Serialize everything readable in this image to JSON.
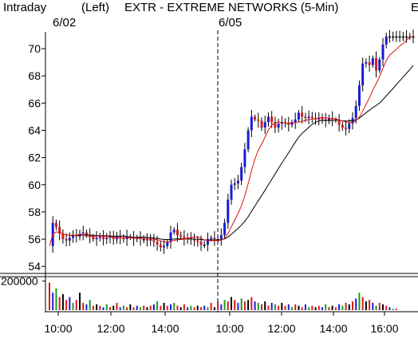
{
  "header": {
    "mode": "Intraday",
    "axis_side": "(Left)",
    "title": "EXTR - EXTREME NETWORKS (5-Min)",
    "day1_label": "6/02",
    "day2_label": "6/05",
    "edge_mark": "E"
  },
  "chart_data": {
    "type": "candlestick",
    "title": "EXTR - EXTREME NETWORKS (5-Min)",
    "price_axis": {
      "ticks": [
        54,
        56,
        58,
        60,
        62,
        64,
        66,
        68,
        70
      ],
      "ylim": [
        53.6,
        71.0
      ]
    },
    "volume_axis": {
      "ticks": [
        "200000"
      ],
      "ylim": [
        0,
        220000
      ]
    },
    "time_axis": {
      "ticks": [
        "10:00",
        "12:00",
        "14:00",
        "10:00",
        "12:00",
        "14:00",
        "16:00"
      ]
    },
    "sessions": [
      "6/02",
      "6/05"
    ],
    "colors": {
      "up": "#1a1ad8",
      "down": "#d81a1a",
      "neutral": "#000000",
      "ma_fast": "#e01010",
      "ma_slow": "#000000"
    },
    "price_path": [
      [
        0,
        55.5
      ],
      [
        1,
        57.2
      ],
      [
        2,
        56.9
      ],
      [
        3,
        56.4
      ],
      [
        4,
        56.0
      ],
      [
        5,
        55.9
      ],
      [
        6,
        56.1
      ],
      [
        7,
        56.3
      ],
      [
        8,
        56.2
      ],
      [
        9,
        56.4
      ],
      [
        10,
        56.5
      ],
      [
        11,
        56.3
      ],
      [
        12,
        56.2
      ],
      [
        13,
        56.0
      ],
      [
        14,
        56.1
      ],
      [
        15,
        56.2
      ],
      [
        16,
        56.0
      ],
      [
        17,
        56.1
      ],
      [
        18,
        56.2
      ],
      [
        19,
        56.0
      ],
      [
        20,
        56.2
      ],
      [
        21,
        56.1
      ],
      [
        22,
        56.0
      ],
      [
        23,
        56.2
      ],
      [
        24,
        56.1
      ],
      [
        25,
        56.0
      ],
      [
        26,
        56.1
      ],
      [
        27,
        56.0
      ],
      [
        28,
        56.0
      ],
      [
        29,
        55.9
      ],
      [
        30,
        56.0
      ],
      [
        31,
        55.8
      ],
      [
        32,
        55.6
      ],
      [
        33,
        55.4
      ],
      [
        34,
        55.5
      ],
      [
        35,
        55.8
      ],
      [
        36,
        56.5
      ],
      [
        37,
        56.7
      ],
      [
        38,
        56.3
      ],
      [
        39,
        56.2
      ],
      [
        40,
        56.0
      ],
      [
        41,
        56.1
      ],
      [
        42,
        56.0
      ],
      [
        43,
        55.9
      ],
      [
        44,
        55.8
      ],
      [
        45,
        55.6
      ],
      [
        46,
        55.6
      ],
      [
        47,
        56.0
      ],
      [
        48,
        56.1
      ],
      [
        49,
        56.0
      ],
      [
        50,
        56.0
      ],
      [
        51,
        56.3
      ],
      [
        52,
        57.2
      ],
      [
        53,
        58.9
      ],
      [
        54,
        60.0
      ],
      [
        55,
        60.1
      ],
      [
        56,
        60.3
      ],
      [
        57,
        61.3
      ],
      [
        58,
        62.6
      ],
      [
        59,
        64.0
      ],
      [
        60,
        65.0
      ],
      [
        61,
        64.8
      ],
      [
        62,
        64.7
      ],
      [
        63,
        64.2
      ],
      [
        64,
        64.6
      ],
      [
        65,
        65.0
      ],
      [
        66,
        64.6
      ],
      [
        67,
        64.2
      ],
      [
        68,
        64.5
      ],
      [
        69,
        64.6
      ],
      [
        70,
        64.5
      ],
      [
        71,
        64.4
      ],
      [
        72,
        64.6
      ],
      [
        73,
        64.8
      ],
      [
        74,
        65.3
      ],
      [
        75,
        65.0
      ],
      [
        76,
        64.9
      ],
      [
        77,
        65.0
      ],
      [
        78,
        64.9
      ],
      [
        79,
        64.8
      ],
      [
        80,
        64.9
      ],
      [
        81,
        64.8
      ],
      [
        82,
        64.7
      ],
      [
        83,
        64.9
      ],
      [
        84,
        64.8
      ],
      [
        85,
        64.7
      ],
      [
        86,
        64.4
      ],
      [
        87,
        64.2
      ],
      [
        88,
        64.1
      ],
      [
        89,
        64.5
      ],
      [
        90,
        64.9
      ],
      [
        91,
        65.8
      ],
      [
        92,
        67.3
      ],
      [
        93,
        68.9
      ],
      [
        94,
        69.0
      ],
      [
        95,
        68.8
      ],
      [
        96,
        69.3
      ],
      [
        97,
        68.4
      ],
      [
        98,
        69.2
      ],
      [
        99,
        70.3
      ],
      [
        100,
        70.9
      ],
      [
        101,
        70.9
      ],
      [
        102,
        70.9
      ],
      [
        103,
        70.9
      ],
      [
        104,
        70.9
      ],
      [
        105,
        70.9
      ],
      [
        106,
        70.9
      ],
      [
        107,
        70.9
      ],
      [
        108,
        70.9
      ]
    ],
    "volume_profile": [
      [
        0,
        190000
      ],
      [
        1,
        120000
      ],
      [
        2,
        150000
      ],
      [
        3,
        90000
      ],
      [
        4,
        110000
      ],
      [
        5,
        70000
      ],
      [
        6,
        90000
      ],
      [
        7,
        50000
      ],
      [
        8,
        70000
      ],
      [
        9,
        120000
      ],
      [
        10,
        50000
      ],
      [
        11,
        40000
      ],
      [
        12,
        70000
      ],
      [
        13,
        30000
      ],
      [
        14,
        40000
      ],
      [
        15,
        30000
      ],
      [
        16,
        20000
      ],
      [
        17,
        40000
      ],
      [
        18,
        20000
      ],
      [
        19,
        30000
      ],
      [
        20,
        50000
      ],
      [
        21,
        20000
      ],
      [
        22,
        30000
      ],
      [
        23,
        20000
      ],
      [
        24,
        40000
      ],
      [
        25,
        20000
      ],
      [
        26,
        30000
      ],
      [
        27,
        20000
      ],
      [
        28,
        30000
      ],
      [
        29,
        20000
      ],
      [
        30,
        30000
      ],
      [
        31,
        40000
      ],
      [
        32,
        60000
      ],
      [
        33,
        30000
      ],
      [
        34,
        50000
      ],
      [
        35,
        30000
      ],
      [
        36,
        40000
      ],
      [
        37,
        50000
      ],
      [
        38,
        30000
      ],
      [
        39,
        20000
      ],
      [
        40,
        40000
      ],
      [
        41,
        20000
      ],
      [
        42,
        30000
      ],
      [
        43,
        20000
      ],
      [
        44,
        30000
      ],
      [
        45,
        20000
      ],
      [
        46,
        30000
      ],
      [
        47,
        20000
      ],
      [
        48,
        50000
      ],
      [
        49,
        20000
      ],
      [
        50,
        60000
      ],
      [
        51,
        40000
      ],
      [
        52,
        70000
      ],
      [
        53,
        60000
      ],
      [
        54,
        90000
      ],
      [
        55,
        70000
      ],
      [
        56,
        50000
      ],
      [
        57,
        80000
      ],
      [
        58,
        60000
      ],
      [
        59,
        70000
      ],
      [
        60,
        90000
      ],
      [
        61,
        60000
      ],
      [
        62,
        50000
      ],
      [
        63,
        40000
      ],
      [
        64,
        60000
      ],
      [
        65,
        30000
      ],
      [
        66,
        50000
      ],
      [
        67,
        40000
      ],
      [
        68,
        30000
      ],
      [
        69,
        50000
      ],
      [
        70,
        30000
      ],
      [
        71,
        40000
      ],
      [
        72,
        20000
      ],
      [
        73,
        40000
      ],
      [
        74,
        30000
      ],
      [
        75,
        20000
      ],
      [
        76,
        40000
      ],
      [
        77,
        20000
      ],
      [
        78,
        30000
      ],
      [
        79,
        20000
      ],
      [
        80,
        30000
      ],
      [
        81,
        20000
      ],
      [
        82,
        40000
      ],
      [
        83,
        20000
      ],
      [
        84,
        30000
      ],
      [
        85,
        20000
      ],
      [
        86,
        40000
      ],
      [
        87,
        30000
      ],
      [
        88,
        50000
      ],
      [
        89,
        40000
      ],
      [
        90,
        60000
      ],
      [
        91,
        80000
      ],
      [
        92,
        120000
      ],
      [
        93,
        90000
      ],
      [
        94,
        60000
      ],
      [
        95,
        70000
      ],
      [
        96,
        50000
      ],
      [
        97,
        30000
      ],
      [
        98,
        50000
      ],
      [
        99,
        40000
      ],
      [
        100,
        30000
      ],
      [
        101,
        20000
      ],
      [
        102,
        10000
      ],
      [
        103,
        10000
      ],
      [
        104,
        0
      ]
    ]
  }
}
